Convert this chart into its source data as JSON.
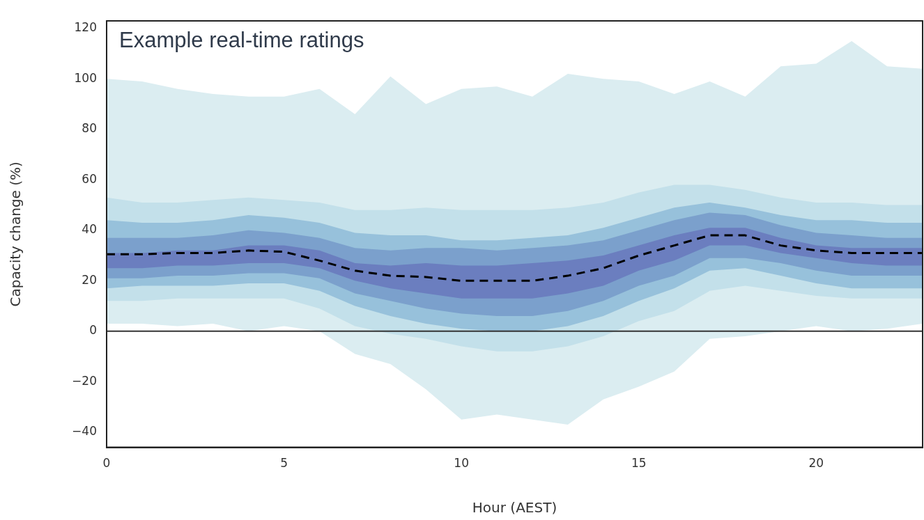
{
  "chart_data": {
    "type": "line",
    "title": "Example real-time ratings",
    "xlabel": "Hour (AEST)",
    "ylabel": "Capacity change (%)",
    "x": [
      0,
      1,
      2,
      3,
      4,
      5,
      6,
      7,
      8,
      9,
      10,
      11,
      12,
      13,
      14,
      15,
      16,
      17,
      18,
      19,
      20,
      21,
      22,
      23
    ],
    "series": [
      {
        "color": "#dbedf1",
        "values": [
          null,
          null,
          null,
          null,
          null,
          null,
          null,
          null,
          null,
          null,
          null,
          null,
          null,
          null,
          null,
          null,
          null,
          null,
          null,
          null,
          null,
          null,
          null,
          null
        ],
        "lower": [
          3,
          3,
          2,
          3,
          0,
          2,
          0,
          -9,
          -13,
          -23,
          -35,
          -33,
          -35,
          -37,
          -27,
          -22,
          -16,
          -3,
          -2,
          0,
          2,
          0,
          1,
          3
        ],
        "upper": [
          100,
          99,
          96,
          94,
          93,
          93,
          96,
          86,
          101,
          90,
          96,
          97,
          93,
          102,
          100,
          99,
          94,
          99,
          93,
          105,
          106,
          115,
          105,
          104
        ]
      },
      {
        "color": "#c3e0ea",
        "values": [
          null,
          null,
          null,
          null,
          null,
          null,
          null,
          null,
          null,
          null,
          null,
          null,
          null,
          null,
          null,
          null,
          null,
          null,
          null,
          null,
          null,
          null,
          null,
          null
        ],
        "lower": [
          12,
          12,
          13,
          13,
          13,
          13,
          9,
          2,
          -1,
          -3,
          -6,
          -8,
          -8,
          -6,
          -2,
          4,
          8,
          16,
          18,
          16,
          14,
          13,
          13,
          13
        ],
        "upper": [
          53,
          51,
          51,
          52,
          53,
          52,
          51,
          48,
          48,
          49,
          48,
          48,
          48,
          49,
          51,
          55,
          58,
          58,
          56,
          53,
          51,
          51,
          50,
          50
        ]
      },
      {
        "color": "#97c1db",
        "values": [
          null,
          null,
          null,
          null,
          null,
          null,
          null,
          null,
          null,
          null,
          null,
          null,
          null,
          null,
          null,
          null,
          null,
          null,
          null,
          null,
          null,
          null,
          null,
          null
        ],
        "lower": [
          17,
          18,
          18,
          18,
          19,
          19,
          16,
          10,
          6,
          3,
          1,
          0,
          0,
          2,
          6,
          12,
          17,
          24,
          25,
          22,
          19,
          17,
          17,
          17
        ],
        "upper": [
          44,
          43,
          43,
          44,
          46,
          45,
          43,
          39,
          38,
          38,
          36,
          36,
          37,
          38,
          41,
          45,
          49,
          51,
          49,
          46,
          44,
          44,
          43,
          43
        ]
      },
      {
        "color": "#7ba0cc",
        "values": [
          null,
          null,
          null,
          null,
          null,
          null,
          null,
          null,
          null,
          null,
          null,
          null,
          null,
          null,
          null,
          null,
          null,
          null,
          null,
          null,
          null,
          null,
          null,
          null
        ],
        "lower": [
          21,
          21,
          22,
          22,
          23,
          23,
          21,
          15,
          12,
          9,
          7,
          6,
          6,
          8,
          12,
          18,
          22,
          29,
          29,
          27,
          24,
          22,
          22,
          22
        ],
        "upper": [
          37,
          37,
          37,
          38,
          40,
          39,
          37,
          33,
          32,
          33,
          33,
          32,
          33,
          34,
          36,
          40,
          44,
          47,
          46,
          42,
          39,
          38,
          37,
          37
        ]
      },
      {
        "color": "#6b7ebf",
        "values": [
          null,
          null,
          null,
          null,
          null,
          null,
          null,
          null,
          null,
          null,
          null,
          null,
          null,
          null,
          null,
          null,
          null,
          null,
          null,
          null,
          null,
          null,
          null,
          null
        ],
        "lower": [
          25,
          25,
          26,
          26,
          27,
          27,
          25,
          20,
          17,
          15,
          13,
          13,
          13,
          15,
          18,
          24,
          28,
          34,
          34,
          31,
          29,
          27,
          26,
          26
        ],
        "upper": [
          31,
          31,
          32,
          32,
          34,
          34,
          32,
          27,
          26,
          27,
          26,
          26,
          27,
          28,
          30,
          34,
          38,
          41,
          41,
          37,
          34,
          33,
          33,
          33
        ]
      },
      {
        "color": "#000000",
        "line_style": "dashed",
        "values": [
          30.5,
          30.5,
          31,
          31,
          32,
          31.5,
          28,
          24,
          22,
          21.5,
          20,
          20,
          20,
          22,
          25,
          30,
          34,
          38,
          38,
          34,
          32,
          31,
          31,
          31
        ]
      }
    ],
    "xlim": [
      0,
      23
    ],
    "xticks": [
      0,
      5,
      10,
      15,
      20
    ],
    "ylim": [
      -46,
      123
    ],
    "yticks": [
      {
        "value": -40,
        "label": "−40"
      },
      {
        "value": -20,
        "label": "−20"
      },
      0,
      20,
      40,
      60,
      80,
      100,
      120
    ],
    "ref_lines": [
      {
        "axis": "y",
        "value": 0,
        "color": "#333333"
      }
    ],
    "grid": false,
    "legend": false,
    "marker": "none"
  }
}
